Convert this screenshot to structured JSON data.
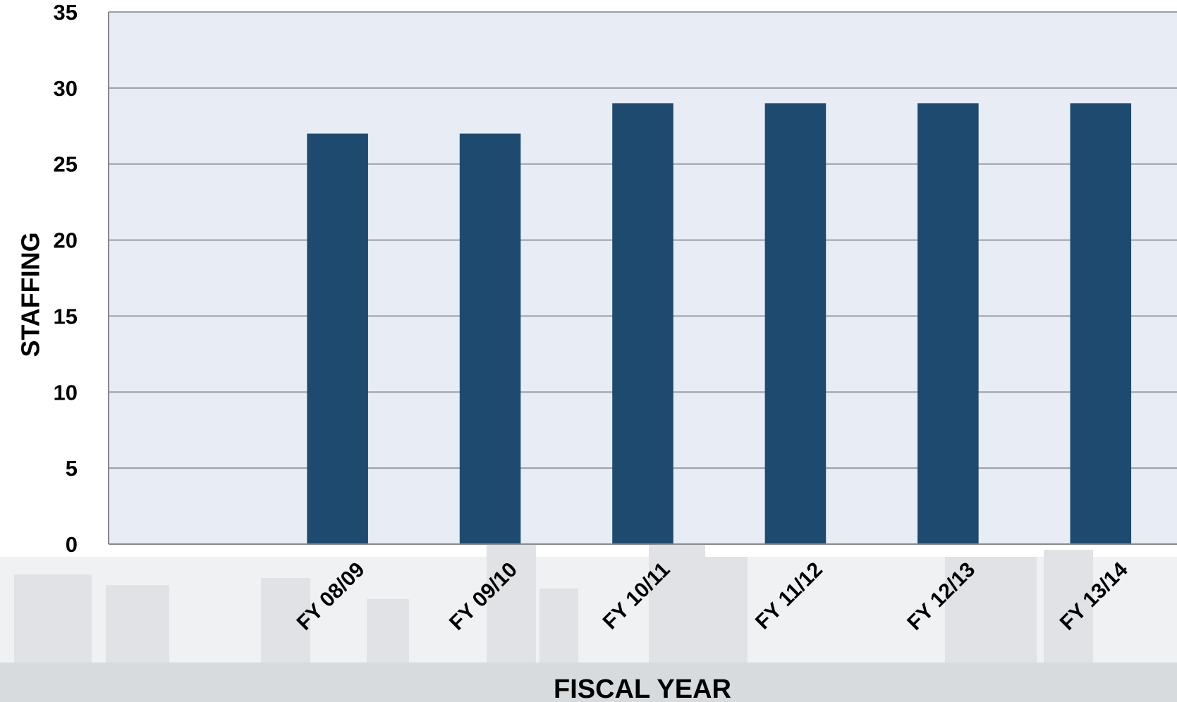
{
  "chart_data": {
    "type": "bar",
    "x_label": "FISCAL YEAR",
    "y_label": "STAFFING",
    "categories": [
      null,
      "FY 08/09",
      "FY 09/10",
      "FY 10/11",
      "FY 11/12",
      "FY 12/13",
      "FY 13/14"
    ],
    "values": [
      null,
      27,
      27,
      29,
      29,
      29,
      29
    ],
    "color": "#1f4a70",
    "ylim": [
      0,
      35
    ],
    "yticks": [
      0,
      5,
      10,
      15,
      20,
      25,
      30,
      35
    ],
    "grid": true
  }
}
